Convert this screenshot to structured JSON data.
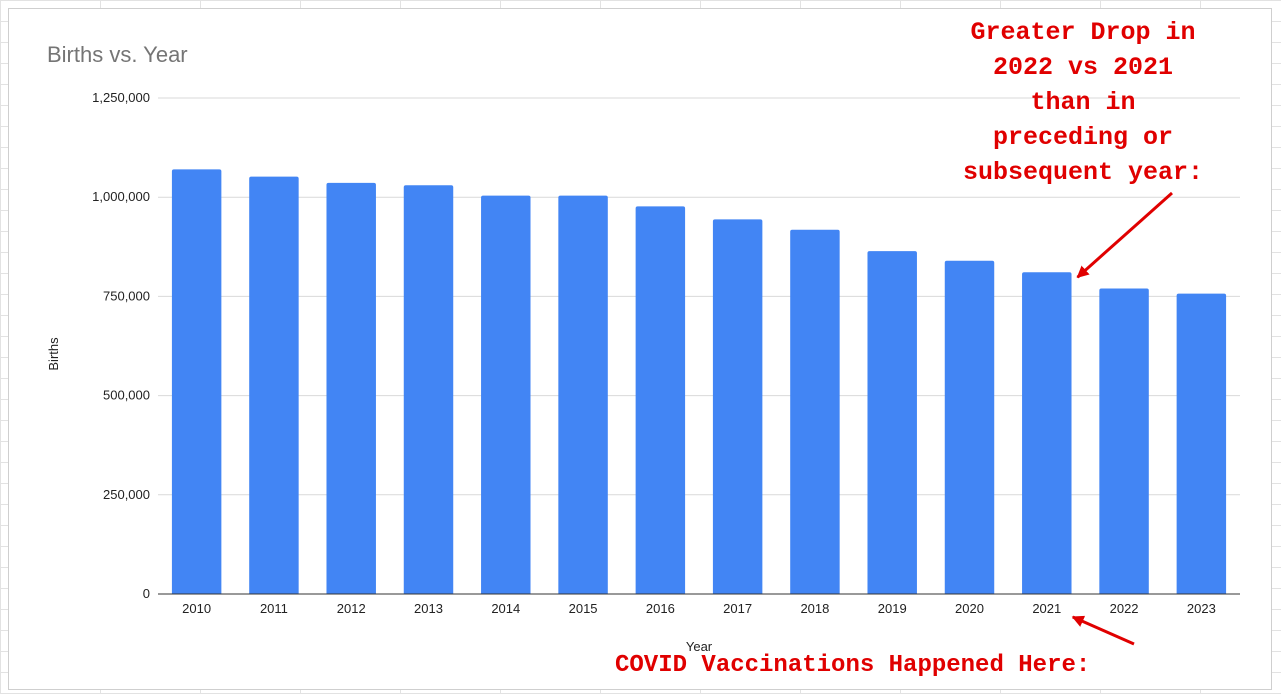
{
  "chart_data": {
    "type": "bar",
    "title": "Births vs. Year",
    "xlabel": "Year",
    "ylabel": "Births",
    "categories": [
      "2010",
      "2011",
      "2012",
      "2013",
      "2014",
      "2015",
      "2016",
      "2017",
      "2018",
      "2019",
      "2020",
      "2021",
      "2022",
      "2023"
    ],
    "values": [
      1070000,
      1052000,
      1036000,
      1030000,
      1004000,
      1004000,
      977000,
      944000,
      918000,
      864000,
      840000,
      811000,
      770000,
      757000
    ],
    "ylim": [
      0,
      1250000
    ],
    "yticks": [
      "0",
      "250,000",
      "500,000",
      "750,000",
      "1,000,000",
      "1,250,000"
    ],
    "ytick_values": [
      0,
      250000,
      500000,
      750000,
      1000000,
      1250000
    ],
    "grid": true,
    "bar_color": "#4285f4",
    "annotations": {
      "top_lines": [
        "Greater Drop in",
        "2022 vs 2021",
        "than in",
        "preceding or",
        "subsequent year:"
      ],
      "top_arrow_target": "2021",
      "bottom": "COVID Vaccinations Happened Here:",
      "bottom_arrow_target": "2021",
      "color": "#e00000"
    }
  }
}
